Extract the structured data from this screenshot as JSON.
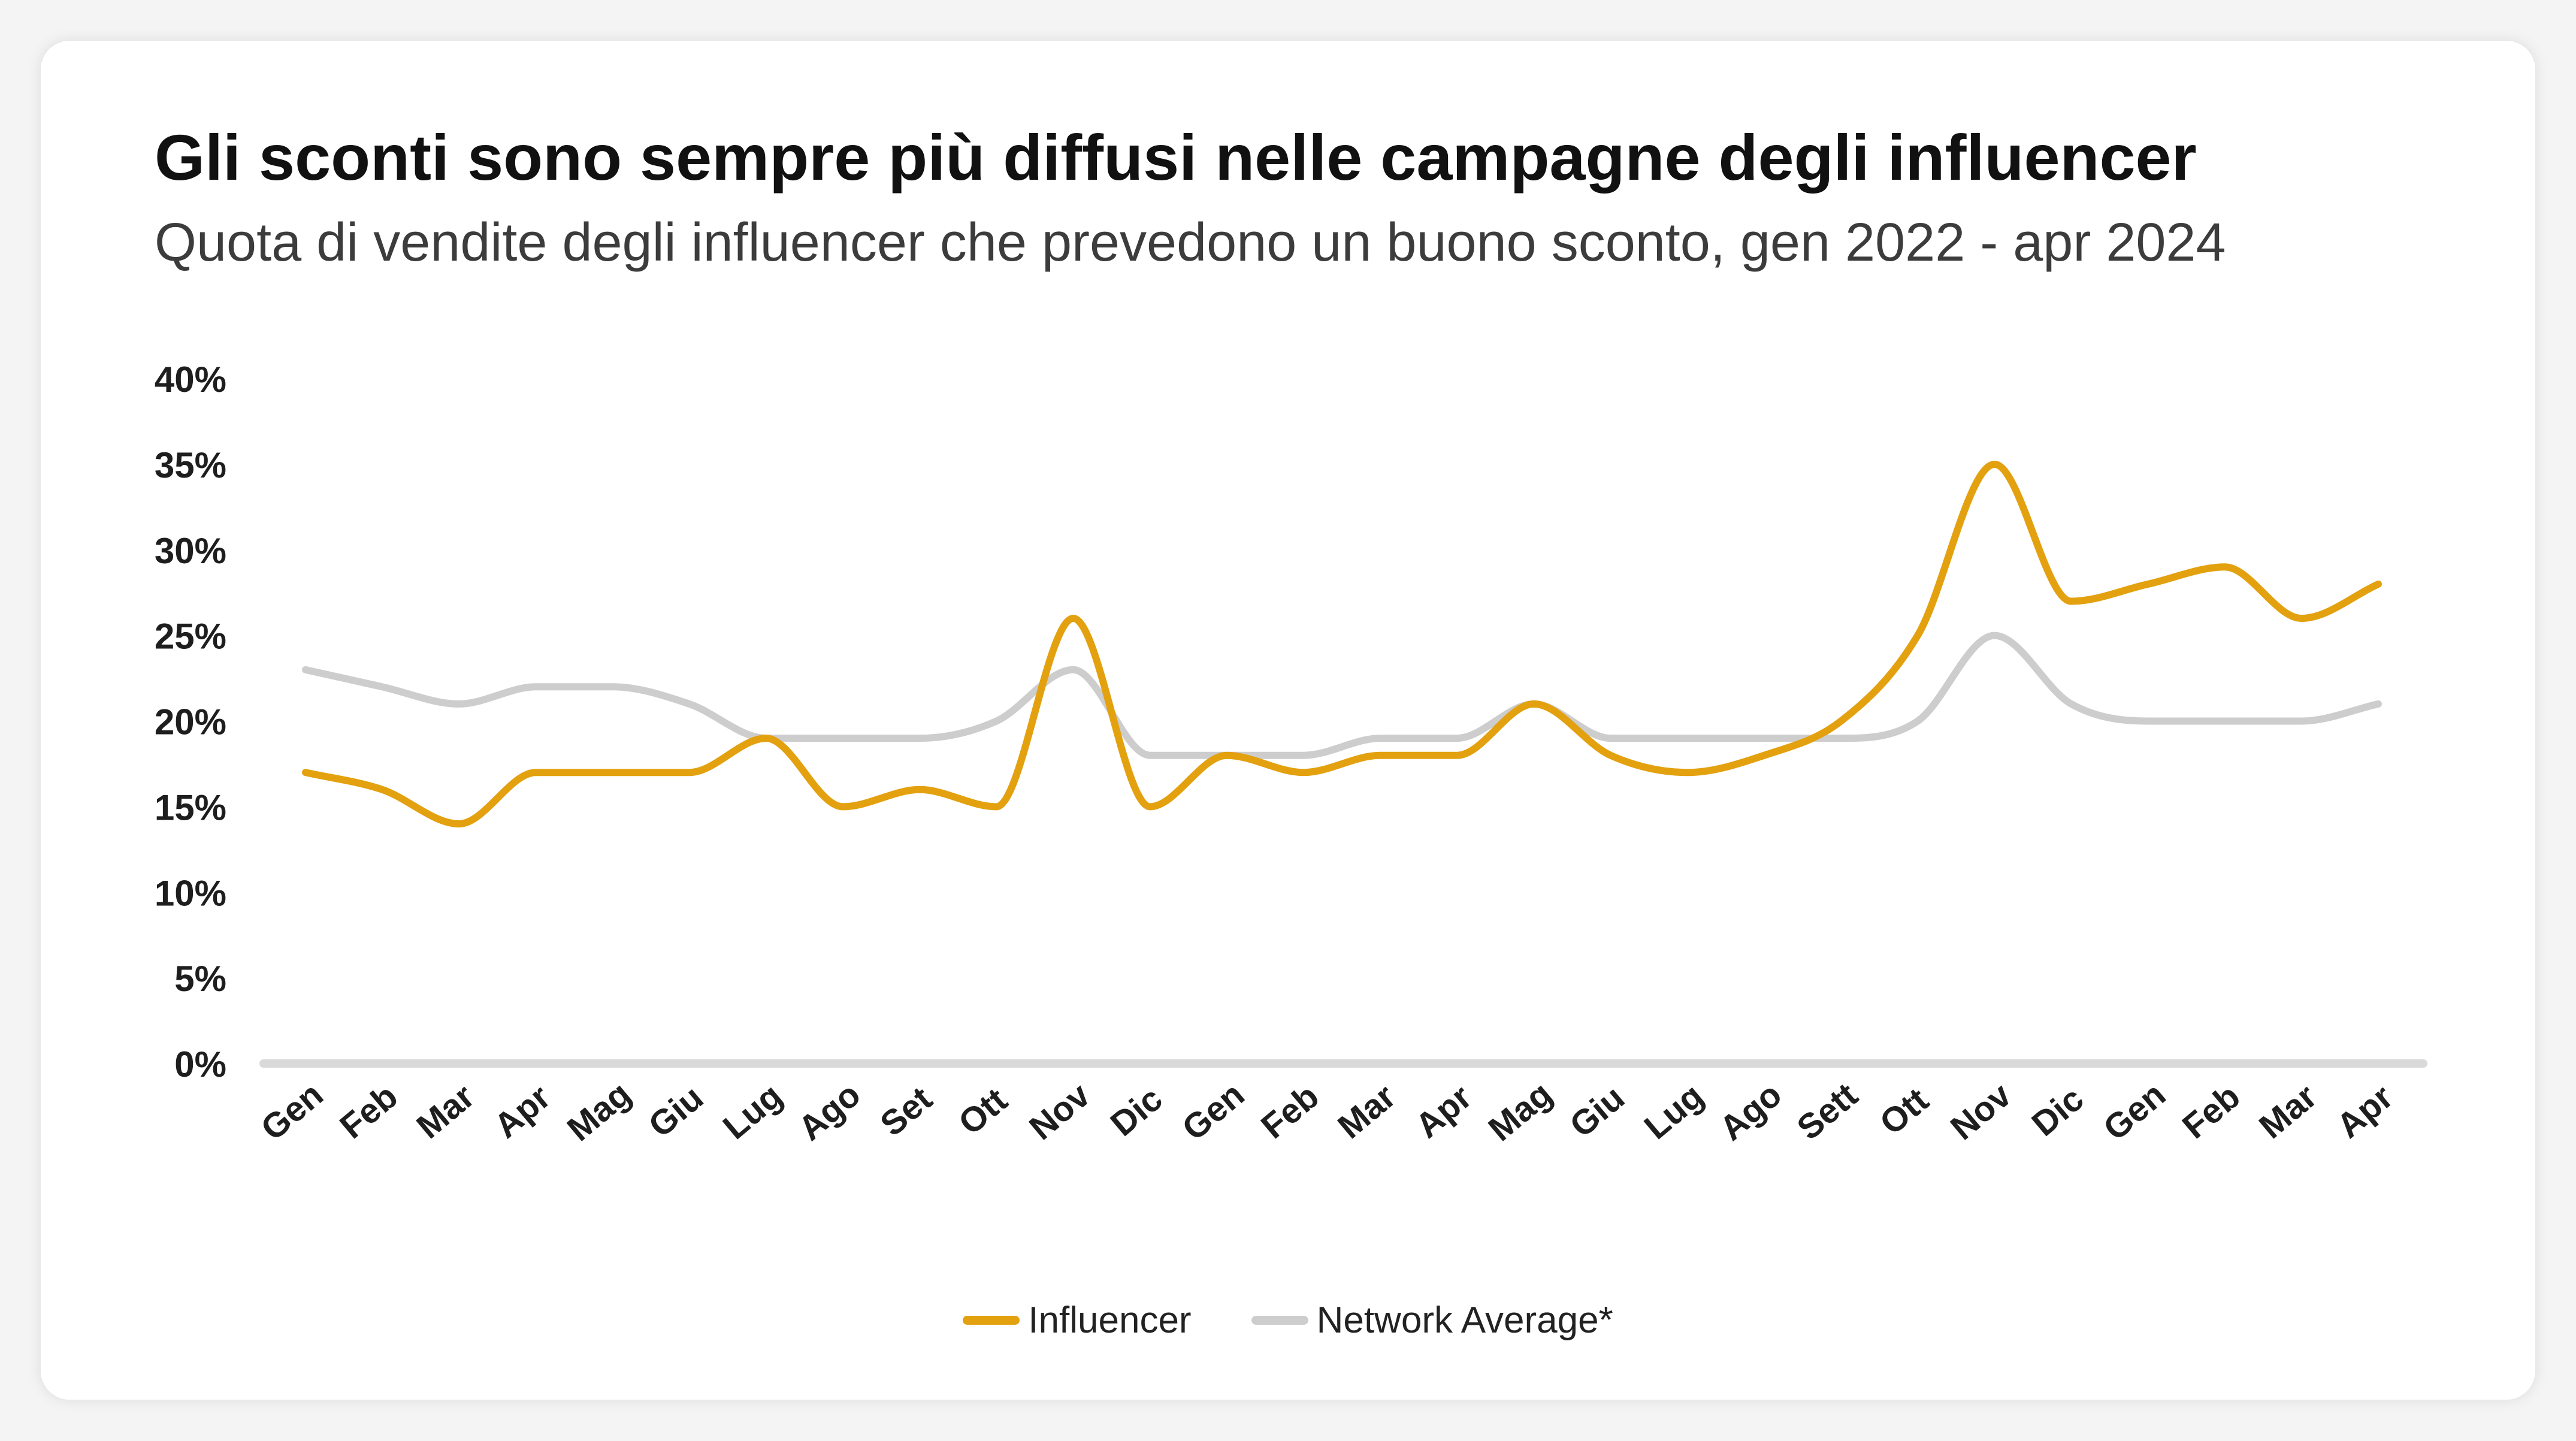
{
  "title": "Gli sconti sono sempre più diffusi nelle campagne degli influencer",
  "subtitle": "Quota di vendite degli influencer che prevedono un buono sconto, gen 2022 - apr 2024",
  "colors": {
    "influencer": "#E3A10F",
    "network": "#CDCDCD",
    "baseline": "#D9D9D9",
    "text": "#222222"
  },
  "chart_data": {
    "type": "line",
    "title": "Gli sconti sono sempre più diffusi nelle campagne degli influencer",
    "subtitle": "Quota di vendite degli influencer che prevedono un buono sconto, gen 2022 - apr 2024",
    "xlabel": "",
    "ylabel": "",
    "ylim": [
      0,
      40
    ],
    "yticks": [
      "0%",
      "5%",
      "10%",
      "15%",
      "20%",
      "25%",
      "30%",
      "35%",
      "40%"
    ],
    "categories": [
      "Gen",
      "Feb",
      "Mar",
      "Apr",
      "Mag",
      "Giu",
      "Lug",
      "Ago",
      "Set",
      "Ott",
      "Nov",
      "Dic",
      "Gen",
      "Feb",
      "Mar",
      "Apr",
      "Mag",
      "Giu",
      "Lug",
      "Ago",
      "Sett",
      "Ott",
      "Nov",
      "Dic",
      "Gen",
      "Feb",
      "Mar",
      "Apr"
    ],
    "grid": false,
    "legend_position": "bottom",
    "series": [
      {
        "name": "Influencer",
        "color": "#E3A10F",
        "values": [
          17,
          16,
          14,
          17,
          17,
          17,
          19,
          15,
          16,
          15,
          26,
          15,
          18,
          17,
          18,
          18,
          21,
          18,
          17,
          18,
          20,
          25,
          35,
          27,
          28,
          29,
          26,
          28
        ]
      },
      {
        "name": "Network Average*",
        "color": "#CDCDCD",
        "values": [
          23,
          22,
          21,
          22,
          22,
          21,
          19,
          19,
          19,
          20,
          23,
          18,
          18,
          18,
          19,
          19,
          21,
          19,
          19,
          19,
          19,
          20,
          25,
          21,
          20,
          20,
          20,
          21
        ]
      }
    ]
  }
}
